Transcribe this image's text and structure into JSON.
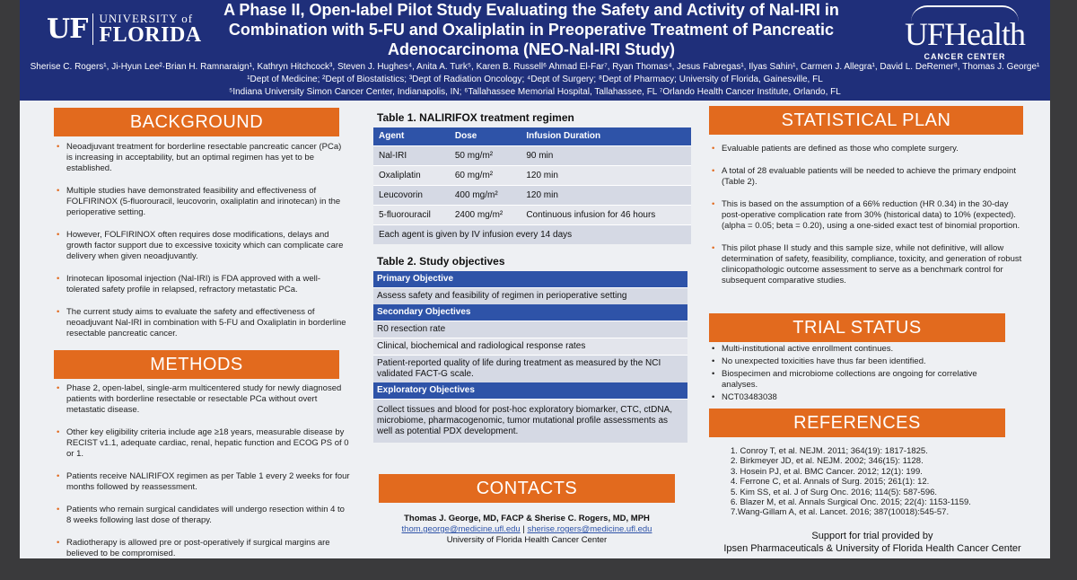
{
  "header": {
    "uf_logo_mark": "UF",
    "uf_logo_small": "UNIVERSITY of",
    "uf_logo_big": "FLORIDA",
    "title_line1": "A Phase II, Open-label Pilot Study Evaluating the Safety and Activity of Nal-IRI in",
    "title_line2": "Combination with 5-FU and Oxaliplatin in Preoperative Treatment of Pancreatic",
    "title_line3": "Adenocarcinoma (NEO-Nal-IRI Study)",
    "health_logo_name": "UFHealth",
    "health_logo_sub": "CANCER CENTER",
    "authors": "Sherise C. Rogers¹, Ji-Hyun Lee²·Brian H. Ramnaraign¹, Kathryn Hitchcock³, Steven J. Hughes⁴, Anita A. Turk⁵, Karen B. Russell⁶ Ahmad El-Far⁷, Ryan Thomas⁴, Jesus Fabregas¹, Ilyas Sahin¹, Carmen J. Allegra¹, David L. DeRemer⁸, Thomas J. George¹",
    "affil1": "¹Dept of Medicine; ²Dept of Biostatistics; ³Dept of Radiation Oncology; ⁴Dept of Surgery; ⁸Dept of Pharmacy; University of Florida, Gainesville, FL",
    "affil2": "⁵Indiana University Simon Cancer Center, Indianapolis, IN; ⁶Tallahassee Memorial Hospital, Tallahassee, FL ⁷Orlando Health Cancer Institute, Orlando, FL"
  },
  "background": {
    "heading": "BACKGROUND",
    "bullets": [
      "Neoadjuvant treatment for borderline resectable pancreatic cancer (PCa) is increasing in acceptability, but an optimal regimen has yet to be established.",
      "Multiple studies have demonstrated feasibility and effectiveness of FOLFIRINOX (5-fluorouracil, leucovorin, oxaliplatin and irinotecan) in the perioperative setting.",
      "However, FOLFIRINOX often requires dose modifications, delays and growth factor support due to excessive toxicity which can complicate care delivery when given neoadjuvantly.",
      "Irinotecan liposomal injection (Nal-IRI) is FDA approved with a well-tolerated safety profile in relapsed, refractory metastatic PCa.",
      "The current study aims to evaluate the safety and effectiveness of neoadjuvant Nal-IRI in combination with 5-FU and Oxaliplatin in borderline resectable pancreatic cancer."
    ]
  },
  "methods": {
    "heading": "METHODS",
    "bullets": [
      "Phase 2, open-label, single-arm multicentered study for newly diagnosed patients with borderline resectable or resectable PCa without overt metastatic disease.",
      "Other key eligibility criteria include age ≥18 years, measurable disease by RECIST v1.1, adequate cardiac, renal, hepatic function and ECOG PS of 0 or 1.",
      "Patients receive NALIRIFOX regimen as per Table 1 every 2 weeks for four months followed by reassessment.",
      "Patients who remain surgical candidates will undergo resection within 4 to 8 weeks following last dose of therapy.",
      "Radiotherapy is allowed pre or post-operatively if surgical margins are believed to be compromised."
    ]
  },
  "table1": {
    "caption": "Table 1.  NALIRIFOX treatment regimen",
    "headers": [
      "Agent",
      "Dose",
      "Infusion Duration"
    ],
    "rows": [
      [
        "Nal-IRI",
        "50 mg/m²",
        "90 min"
      ],
      [
        "Oxaliplatin",
        "60 mg/m²",
        "120 min"
      ],
      [
        "Leucovorin",
        "400 mg/m²",
        "120 min"
      ],
      [
        "5-fluorouracil",
        "2400 mg/m²",
        "Continuous infusion for 46 hours"
      ]
    ],
    "footer": "Each agent is given by IV infusion every 14 days"
  },
  "table2": {
    "caption": "Table 2.  Study objectives",
    "primary_heading": "Primary Objective",
    "primary": [
      "Assess safety and feasibility of regimen in perioperative setting"
    ],
    "secondary_heading": "Secondary Objectives",
    "secondary": [
      "R0 resection rate",
      "Clinical, biochemical and radiological response rates",
      "Patient-reported quality of life during treatment as measured by the NCI validated FACT-G scale."
    ],
    "exploratory_heading": "Exploratory Objectives",
    "exploratory": [
      "Collect tissues and blood for post-hoc exploratory biomarker, CTC, ctDNA, microbiome, pharmacogenomic, tumor mutational profile assessments as well as potential PDX development."
    ]
  },
  "contacts": {
    "heading": "CONTACTS",
    "names": "Thomas J. George, MD, FACP & Sherise C. Rogers, MD, MPH",
    "email1": "thom.george@medicine.ufl.edu",
    "separator": " | ",
    "email2": "sherise.rogers@medicine.ufl.edu",
    "institution": "University of Florida Health Cancer Center"
  },
  "statistical_plan": {
    "heading": "STATISTICAL PLAN",
    "bullets": [
      "Evaluable patients are defined as those who complete surgery.",
      "A total of 28 evaluable patients will be needed to achieve the primary endpoint (Table 2).",
      "This is based on the assumption of a 66% reduction (HR 0.34) in the 30-day post-operative complication rate from 30% (historical data) to 10% (expected). (alpha = 0.05; beta = 0.20), using a one-sided exact test of binomial proportion.",
      "This pilot phase II study and this sample size, while not definitive, will allow determination of safety, feasibility, compliance, toxicity, and generation of robust clinicopathologic outcome assessment to serve as a benchmark control for subsequent comparative studies."
    ]
  },
  "trial_status": {
    "heading": "TRIAL STATUS",
    "bullets": [
      "Multi-institutional active enrollment continues.",
      "No unexpected toxicities have thus far been identified.",
      "Biospecimen and microbiome collections are ongoing for correlative analyses.",
      "NCT03483038"
    ]
  },
  "references": {
    "heading": "REFERENCES",
    "items": [
      "1. Conroy T, et al. NEJM. 2011; 364(19): 1817-1825.",
      "2. Birkmeyer JD, et al. NEJM. 2002; 346(15): 1128.",
      "3. Hosein PJ, et al.  BMC Cancer. 2012; 12(1): 199.",
      "4. Ferrone C, et al. Annals of Surg. 2015; 261(1): 12.",
      "5. Kim SS, et al. J of Surg Onc. 2016; 114(5): 587-596.",
      "6. Blazer M, et al. Annals Surgical Onc. 2015; 22(4): 1153-1159.",
      "7.Wang-Gillam A, et al. Lancet. 2016; 387(10018):545-57."
    ]
  },
  "support": {
    "line1": "Support for trial provided by",
    "line2": "Ipsen Pharmaceuticals & University of Florida Health Cancer Center"
  },
  "colors": {
    "header_navy": "#1f2f7a",
    "accent_orange": "#e26a1e",
    "table_blue": "#2e53a8"
  }
}
